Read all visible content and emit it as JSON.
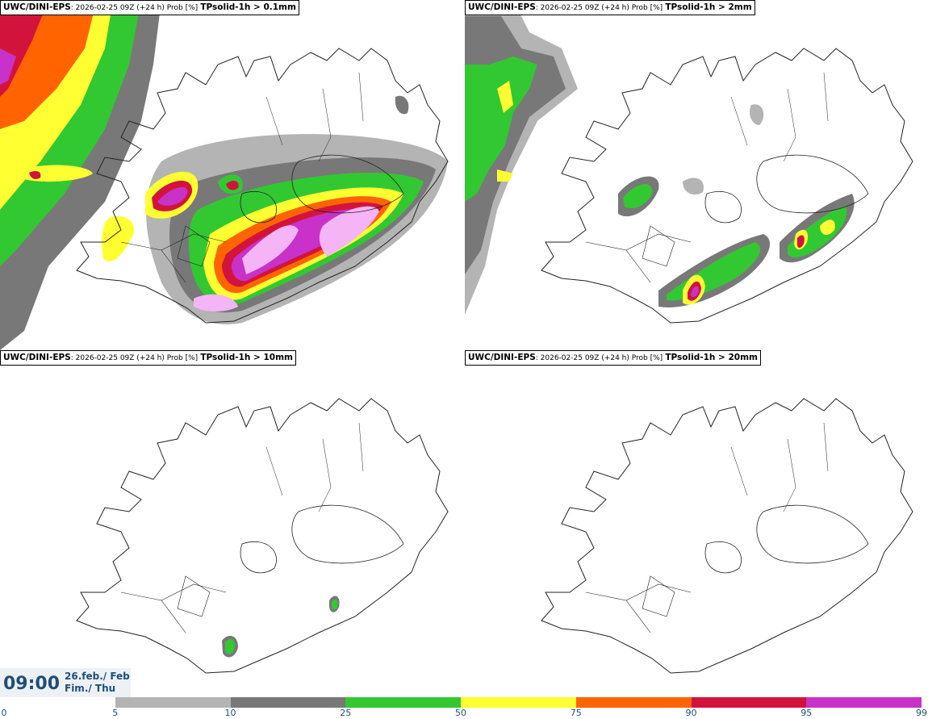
{
  "panels": [
    {
      "model": "UWC/DINI-EPS",
      "meta": ": 2026-02-25 09Z (+24 h) Prob [%]",
      "field": "TPsolid-1h > 0.1mm"
    },
    {
      "model": "UWC/DINI-EPS",
      "meta": ": 2026-02-25 09Z (+24 h) Prob [%]",
      "field": "TPsolid-1h > 2mm"
    },
    {
      "model": "UWC/DINI-EPS",
      "meta": ": 2026-02-25 09Z (+24 h) Prob [%]",
      "field": "TPsolid-1h > 10mm"
    },
    {
      "model": "UWC/DINI-EPS",
      "meta": ": 2026-02-25 09Z (+24 h) Prob [%]",
      "field": "TPsolid-1h > 20mm"
    }
  ],
  "timestamp": {
    "time": "09:00",
    "date_line1": "26.feb./ Feb",
    "date_line2": "Fim./ Thu"
  },
  "colorbar": {
    "ticks": [
      "0",
      "5",
      "10",
      "25",
      "50",
      "75",
      "90",
      "95",
      "99"
    ],
    "colors": [
      "#ffffff",
      "#b4b4b4",
      "#787878",
      "#32c832",
      "#ffff32",
      "#ff6400",
      "#d2143c",
      "#c832c8",
      "#f5b4f5"
    ]
  }
}
